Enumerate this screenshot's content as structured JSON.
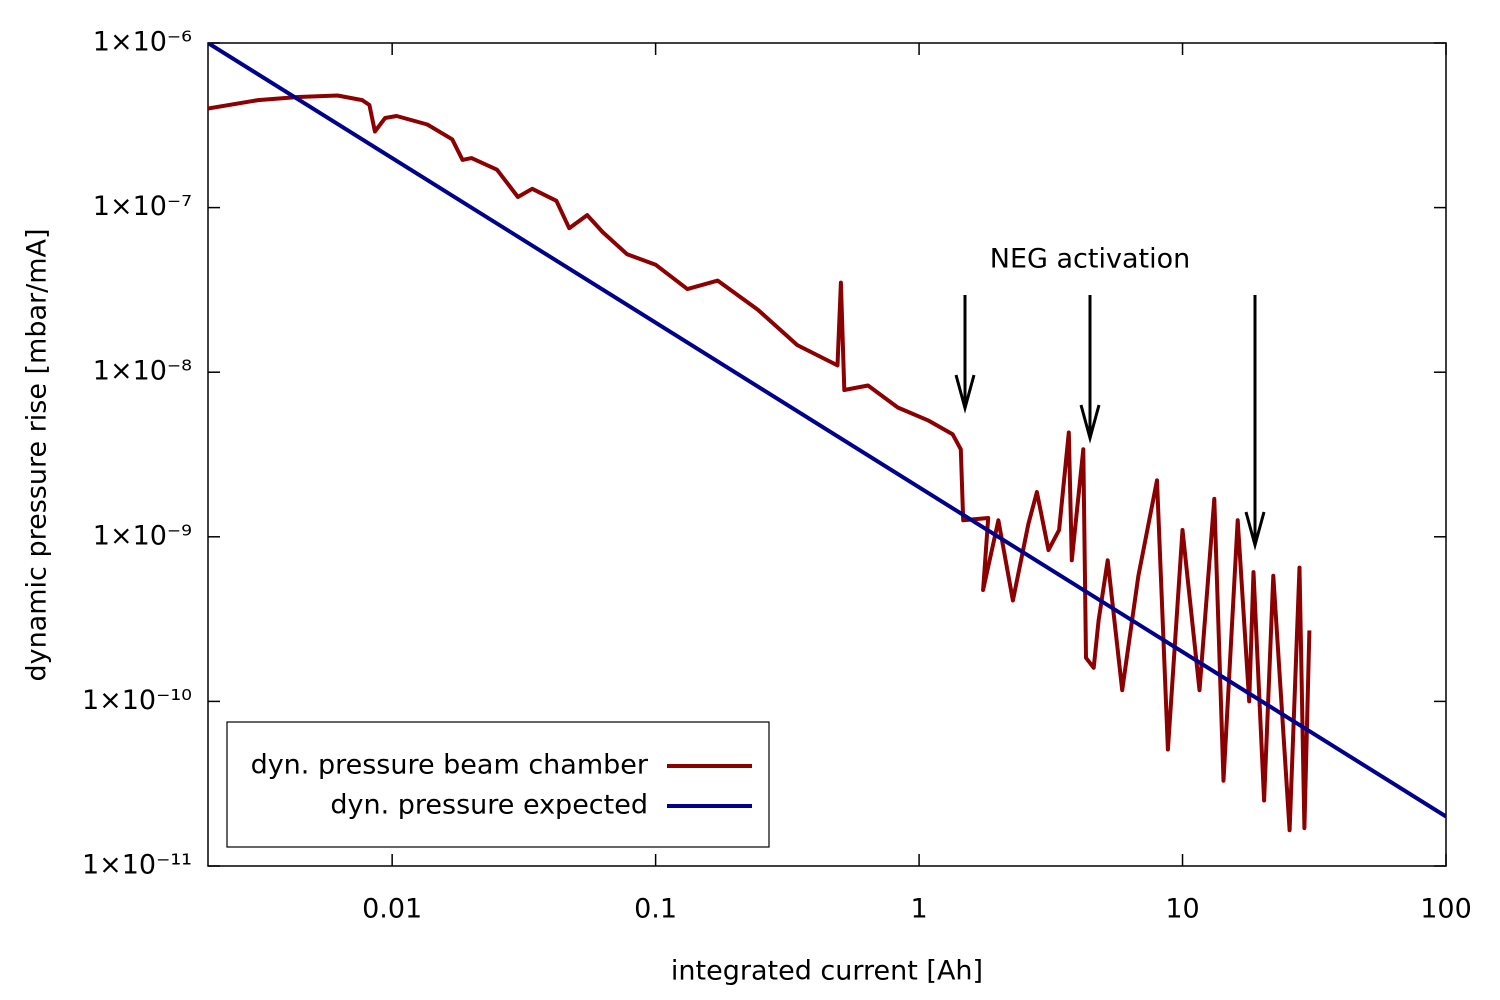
{
  "chart_data": {
    "type": "line",
    "xlabel": "integrated current [Ah]",
    "ylabel": "dynamic pressure rise [mbar/mA]",
    "annotation": "NEG activation",
    "xscale": "log",
    "yscale": "log",
    "xlim": [
      0.002,
      100
    ],
    "ylim": [
      1e-11,
      1e-06
    ],
    "xticks": [
      0.01,
      0.1,
      1,
      10,
      100
    ],
    "yticks": [
      {
        "value": 1e-06,
        "label": "1×10⁻⁶"
      },
      {
        "value": 1e-07,
        "label": "1×10⁻⁷"
      },
      {
        "value": 1e-08,
        "label": "1×10⁻⁸"
      },
      {
        "value": 1e-09,
        "label": "1×10⁻⁹"
      },
      {
        "value": 1e-10,
        "label": "1×10⁻¹⁰"
      },
      {
        "value": 1e-11,
        "label": "1×10⁻¹¹"
      }
    ],
    "legend": "lower left",
    "series": [
      {
        "name": "dyn. pressure beam chamber",
        "color": "#8b0000",
        "x": [
          0.002,
          0.0031,
          0.0044,
          0.0062,
          0.0077,
          0.0082,
          0.0086,
          0.0094,
          0.0104,
          0.0136,
          0.0169,
          0.0185,
          0.02,
          0.025,
          0.03,
          0.034,
          0.042,
          0.047,
          0.055,
          0.063,
          0.078,
          0.1,
          0.132,
          0.172,
          0.244,
          0.345,
          0.49,
          0.505,
          0.52,
          0.64,
          0.83,
          1.08,
          1.34,
          1.44,
          1.47,
          1.83,
          1.75,
          2.0,
          2.27,
          2.6,
          2.8,
          3.1,
          3.4,
          3.7,
          3.8,
          4.2,
          4.3,
          4.6,
          4.8,
          5.2,
          5.9,
          6.8,
          8.0,
          8.8,
          10,
          11.6,
          13.2,
          14.3,
          16.2,
          17.9,
          18.6,
          20.4,
          22.1,
          25.5,
          27.8,
          29,
          30.3
        ],
        "values": [
          4e-07,
          4.5e-07,
          4.7e-07,
          4.8e-07,
          4.5e-07,
          4.2e-07,
          2.9e-07,
          3.5e-07,
          3.6e-07,
          3.2e-07,
          2.6e-07,
          1.95e-07,
          2e-07,
          1.7e-07,
          1.16e-07,
          1.3e-07,
          1.1e-07,
          7.5e-08,
          9e-08,
          7.1e-08,
          5.2e-08,
          4.5e-08,
          3.2e-08,
          3.6e-08,
          2.4e-08,
          1.46e-08,
          1.1e-08,
          3.5e-08,
          7.8e-09,
          8.3e-09,
          6.1e-09,
          5.1e-09,
          4.2e-09,
          3.4e-09,
          1.26e-09,
          1.3e-09,
          4.75e-10,
          1.26e-09,
          4.1e-10,
          1.2e-09,
          1.87e-09,
          8.3e-10,
          1.1e-09,
          4.3e-09,
          7.2e-10,
          3.4e-09,
          1.84e-10,
          1.6e-10,
          3.1e-10,
          7.2e-10,
          1.17e-10,
          5.8e-10,
          2.2e-09,
          5.1e-11,
          1.1e-09,
          1.17e-10,
          1.7e-09,
          3.3e-11,
          1.26e-09,
          1e-10,
          6.1e-10,
          2.5e-11,
          5.8e-10,
          1.65e-11,
          6.5e-10,
          1.7e-11,
          2.7e-10
        ]
      },
      {
        "name": "dyn. pressure expected",
        "color": "#00008b",
        "x": [
          0.002,
          100
        ],
        "values": [
          1e-06,
          2e-11
        ]
      }
    ]
  }
}
